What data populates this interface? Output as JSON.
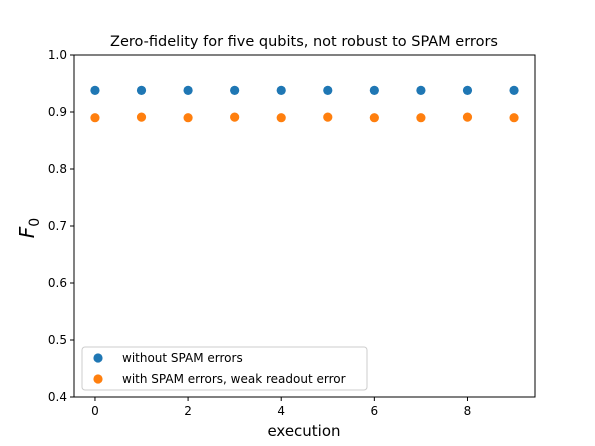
{
  "chart_data": {
    "type": "scatter",
    "title": "Zero-fidelity for five qubits, not robust to SPAM errors",
    "xlabel": "execution",
    "ylabel": "F",
    "ylabel_subscript": "0",
    "xlim": [
      -0.45,
      9.45
    ],
    "ylim": [
      0.4,
      1.0
    ],
    "xticks": [
      0,
      2,
      4,
      6,
      8
    ],
    "yticks": [
      0.4,
      0.5,
      0.6,
      0.7,
      0.8,
      0.9,
      1.0
    ],
    "ytick_labels": [
      "0.4",
      "0.5",
      "0.6",
      "0.7",
      "0.8",
      "0.9",
      "1.0"
    ],
    "grid": false,
    "legend_position": "lower-left",
    "series": [
      {
        "name": "without SPAM errors",
        "color": "#1f77b4",
        "x": [
          0,
          1,
          2,
          3,
          4,
          5,
          6,
          7,
          8,
          9
        ],
        "y": [
          0.938,
          0.938,
          0.938,
          0.938,
          0.938,
          0.938,
          0.938,
          0.938,
          0.938,
          0.938
        ]
      },
      {
        "name": "with SPAM errors, weak readout error",
        "color": "#ff7f0e",
        "x": [
          0,
          1,
          2,
          3,
          4,
          5,
          6,
          7,
          8,
          9
        ],
        "y": [
          0.89,
          0.891,
          0.89,
          0.891,
          0.89,
          0.891,
          0.89,
          0.89,
          0.891,
          0.89
        ]
      }
    ]
  }
}
